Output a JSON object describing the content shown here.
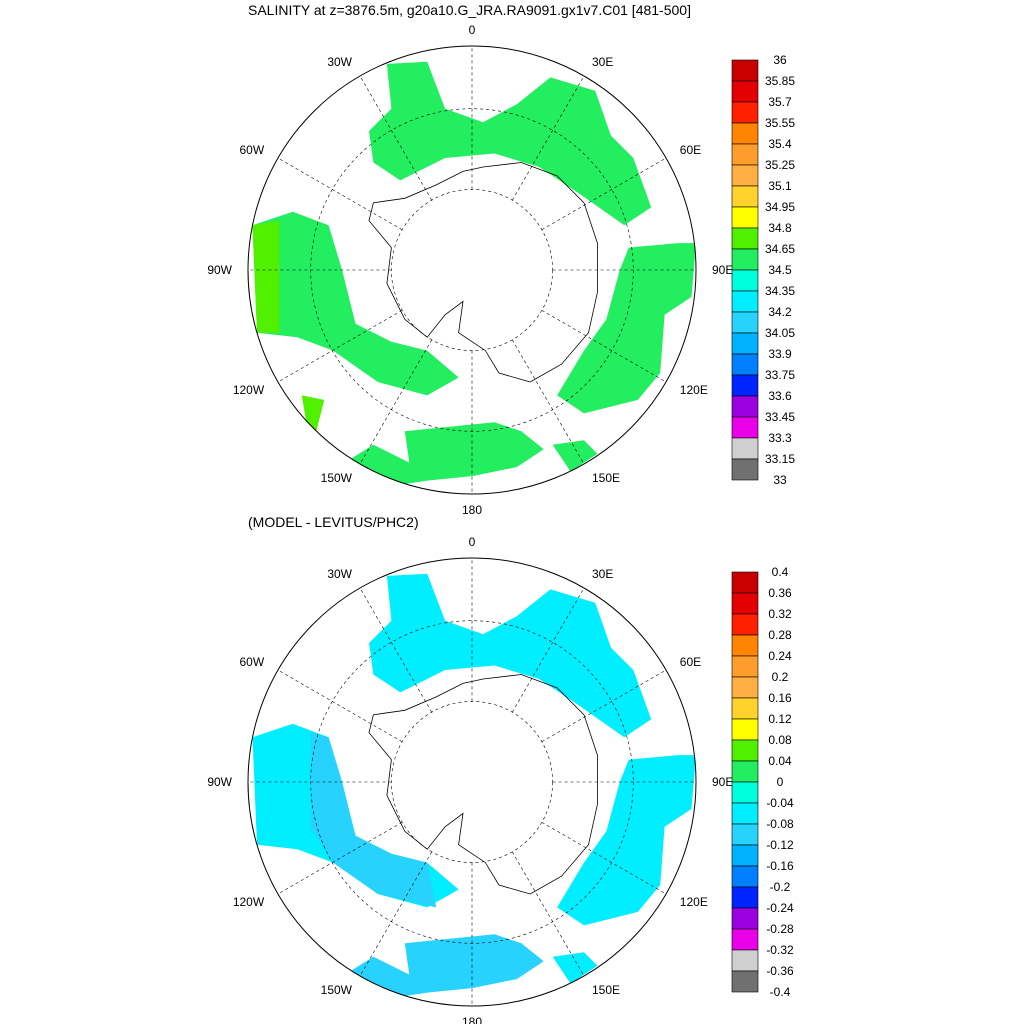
{
  "panels": [
    {
      "title": "SALINITY at z=3876.5m, g20a10.G_JRA.RA9091.gx1v7.C01 [481-500]",
      "longitude_labels": [
        "0",
        "30E",
        "60E",
        "90E",
        "120E",
        "150E",
        "180",
        "150W",
        "120W",
        "90W",
        "60W",
        "30W"
      ],
      "colorbar": {
        "labels": [
          "36",
          "35.85",
          "35.7",
          "35.55",
          "35.4",
          "35.25",
          "35.1",
          "34.95",
          "34.8",
          "34.65",
          "34.5",
          "34.35",
          "34.2",
          "34.05",
          "33.9",
          "33.75",
          "33.6",
          "33.45",
          "33.3",
          "33.15",
          "33"
        ],
        "colors": [
          "#c80000",
          "#e40000",
          "#ff2000",
          "#ff8400",
          "#ff9d2c",
          "#ffb040",
          "#ffd22c",
          "#ffff00",
          "#50f000",
          "#23ee60",
          "#00ffdc",
          "#00eeff",
          "#28d2ff",
          "#00b2ff",
          "#0080ff",
          "#0024ff",
          "#9a00e0",
          "#e800e8",
          "#cfcfcf",
          "#707070"
        ]
      },
      "field_colors": {
        "region": "#23ee60",
        "accent": "#50f000"
      }
    },
    {
      "title": "(MODEL - LEVITUS/PHC2)",
      "longitude_labels": [
        "0",
        "30E",
        "60E",
        "90E",
        "120E",
        "150E",
        "180",
        "150W",
        "120W",
        "90W",
        "60W",
        "30W"
      ],
      "colorbar": {
        "labels": [
          "0.4",
          "0.36",
          "0.32",
          "0.28",
          "0.24",
          "0.2",
          "0.16",
          "0.12",
          "0.08",
          "0.04",
          "0",
          "-0.04",
          "-0.08",
          "-0.12",
          "-0.16",
          "-0.2",
          "-0.24",
          "-0.28",
          "-0.32",
          "-0.36",
          "-0.4"
        ],
        "colors": [
          "#c80000",
          "#e40000",
          "#ff2000",
          "#ff8400",
          "#ff9d2c",
          "#ffb040",
          "#ffd22c",
          "#ffff00",
          "#50f000",
          "#23ee60",
          "#00ffdc",
          "#00eeff",
          "#28d2ff",
          "#00b2ff",
          "#0080ff",
          "#0024ff",
          "#9a00e0",
          "#e800e8",
          "#cfcfcf",
          "#707070"
        ]
      },
      "field_colors": {
        "region": "#00eeff",
        "accent": "#28d2ff"
      }
    }
  ]
}
